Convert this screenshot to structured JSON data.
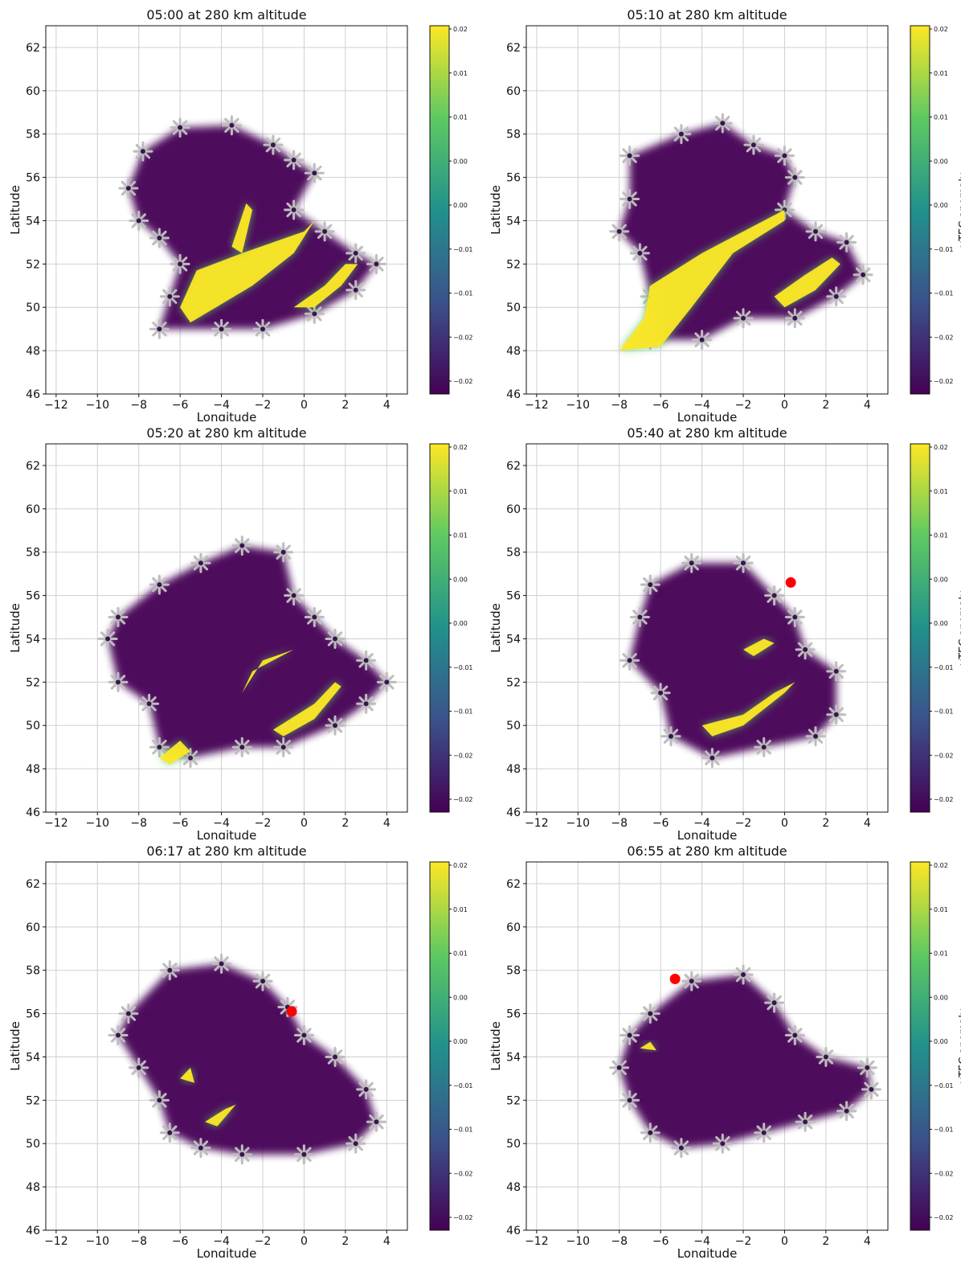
{
  "colorbar": {
    "ticks": [
      "0.02",
      "0.01",
      "0.01",
      "0.00",
      "0.00",
      "-0.01",
      "-0.01",
      "-0.02",
      "-0.02"
    ],
    "label": "vTEC anomaly",
    "colormap": [
      "#440154",
      "#3b528b",
      "#21918c",
      "#5ec962",
      "#fde725"
    ]
  },
  "chart_data": [
    {
      "type": "heatmap",
      "title": "05:00 at 280 km altitude",
      "xlabel": "Longitude",
      "ylabel": "Latitude",
      "xlim": [
        -12.5,
        5
      ],
      "ylim": [
        46,
        63
      ],
      "xticks": [
        -12,
        -10,
        -8,
        -6,
        -4,
        -2,
        0,
        2,
        4
      ],
      "yticks": [
        46,
        48,
        50,
        52,
        54,
        56,
        58,
        60,
        62
      ],
      "grid": true,
      "colorbar_label": "",
      "low_region": [
        [
          -7.8,
          57.2
        ],
        [
          -6.0,
          58.3
        ],
        [
          -3.5,
          58.4
        ],
        [
          -1.5,
          57.5
        ],
        [
          -0.5,
          56.8
        ],
        [
          0.5,
          56.2
        ],
        [
          -0.5,
          54.5
        ],
        [
          1.0,
          53.5
        ],
        [
          2.5,
          52.5
        ],
        [
          3.5,
          52.0
        ],
        [
          2.5,
          50.8
        ],
        [
          0.5,
          49.7
        ],
        [
          -2.0,
          49.0
        ],
        [
          -4.0,
          49.0
        ],
        [
          -7.0,
          49.0
        ],
        [
          -6.5,
          50.5
        ],
        [
          -6.0,
          52.0
        ],
        [
          -7.0,
          53.2
        ],
        [
          -8.0,
          54.0
        ],
        [
          -8.5,
          55.5
        ]
      ],
      "anomaly_bands": [
        [
          [
            -5.2,
            51.7
          ],
          [
            -3.0,
            52.5
          ],
          [
            -1.5,
            53.0
          ],
          [
            0.0,
            53.5
          ],
          [
            0.5,
            54.0
          ],
          [
            -0.5,
            52.5
          ],
          [
            -2.5,
            51.0
          ],
          [
            -5.5,
            49.3
          ],
          [
            -6.0,
            50.0
          ]
        ],
        [
          [
            -0.5,
            50.0
          ],
          [
            1.0,
            51.0
          ],
          [
            2.0,
            52.0
          ],
          [
            2.6,
            52.0
          ],
          [
            1.8,
            51.0
          ],
          [
            0.5,
            50.0
          ]
        ],
        [
          [
            -3.0,
            52.5
          ],
          [
            -2.5,
            54.5
          ],
          [
            -2.8,
            54.8
          ],
          [
            -3.5,
            52.8
          ]
        ]
      ],
      "red_marker": null
    },
    {
      "type": "heatmap",
      "title": "05:10 at 280 km altitude",
      "xlabel": "Longitude",
      "ylabel": "Latitude",
      "xlim": [
        -12.5,
        5
      ],
      "ylim": [
        46,
        63
      ],
      "xticks": [
        -12,
        -10,
        -8,
        -6,
        -4,
        -2,
        0,
        2,
        4
      ],
      "yticks": [
        46,
        48,
        50,
        52,
        54,
        56,
        58,
        60,
        62
      ],
      "grid": true,
      "colorbar_label": "vTEC anomaly",
      "low_region": [
        [
          -7.5,
          57.0
        ],
        [
          -5.0,
          58.0
        ],
        [
          -3.0,
          58.5
        ],
        [
          -1.5,
          57.5
        ],
        [
          0.0,
          57.0
        ],
        [
          0.5,
          56.0
        ],
        [
          0.0,
          54.5
        ],
        [
          1.5,
          53.5
        ],
        [
          3.0,
          53.0
        ],
        [
          3.8,
          51.5
        ],
        [
          2.5,
          50.5
        ],
        [
          0.5,
          49.5
        ],
        [
          -2.0,
          49.5
        ],
        [
          -4.0,
          48.5
        ],
        [
          -6.5,
          48.5
        ],
        [
          -6.5,
          50.5
        ],
        [
          -7.0,
          52.5
        ],
        [
          -8.0,
          53.5
        ],
        [
          -7.5,
          55.0
        ]
      ],
      "anomaly_bands": [
        [
          [
            -6.5,
            51.0
          ],
          [
            -4.0,
            52.5
          ],
          [
            -2.0,
            53.5
          ],
          [
            0.0,
            54.5
          ],
          [
            0.0,
            54.0
          ],
          [
            -2.5,
            52.5
          ],
          [
            -4.5,
            50.0
          ],
          [
            -6.0,
            48.2
          ],
          [
            -8.0,
            48.0
          ],
          [
            -6.8,
            49.5
          ]
        ],
        [
          [
            -0.5,
            50.5
          ],
          [
            1.0,
            51.5
          ],
          [
            2.3,
            52.3
          ],
          [
            2.7,
            52.0
          ],
          [
            1.5,
            50.8
          ],
          [
            0.0,
            50.0
          ]
        ]
      ],
      "red_marker": null
    },
    {
      "type": "heatmap",
      "title": "05:20 at 280 km altitude",
      "xlabel": "Longitude",
      "ylabel": "Latitude",
      "xlim": [
        -12.5,
        5
      ],
      "ylim": [
        46,
        63
      ],
      "xticks": [
        -12,
        -10,
        -8,
        -6,
        -4,
        -2,
        0,
        2,
        4
      ],
      "yticks": [
        46,
        48,
        50,
        52,
        54,
        56,
        58,
        60,
        62
      ],
      "grid": true,
      "colorbar_label": "",
      "low_region": [
        [
          -9.0,
          55.0
        ],
        [
          -7.0,
          56.5
        ],
        [
          -5.0,
          57.5
        ],
        [
          -3.0,
          58.3
        ],
        [
          -1.0,
          58.0
        ],
        [
          -0.5,
          56.0
        ],
        [
          0.5,
          55.0
        ],
        [
          1.5,
          54.0
        ],
        [
          3.0,
          53.0
        ],
        [
          4.0,
          52.0
        ],
        [
          3.0,
          51.0
        ],
        [
          1.5,
          50.0
        ],
        [
          -1.0,
          49.0
        ],
        [
          -3.0,
          49.0
        ],
        [
          -5.5,
          48.5
        ],
        [
          -7.0,
          49.0
        ],
        [
          -7.5,
          51.0
        ],
        [
          -9.0,
          52.0
        ],
        [
          -9.5,
          54.0
        ]
      ],
      "anomaly_bands": [
        [
          [
            -1.5,
            49.8
          ],
          [
            0.5,
            51.0
          ],
          [
            1.5,
            52.0
          ],
          [
            1.8,
            51.8
          ],
          [
            0.5,
            50.3
          ],
          [
            -1.0,
            49.5
          ]
        ],
        [
          [
            -3.0,
            51.5
          ],
          [
            -2.0,
            53.0
          ],
          [
            -0.5,
            53.5
          ],
          [
            -2.5,
            52.5
          ]
        ],
        [
          [
            -7.0,
            48.5
          ],
          [
            -6.0,
            49.3
          ],
          [
            -5.5,
            48.8
          ],
          [
            -6.5,
            48.2
          ]
        ]
      ],
      "red_marker": null
    },
    {
      "type": "heatmap",
      "title": "05:40 at 280 km altitude",
      "xlabel": "Longitude",
      "ylabel": "Latitude",
      "xlim": [
        -12.5,
        5
      ],
      "ylim": [
        46,
        63
      ],
      "xticks": [
        -12,
        -10,
        -8,
        -6,
        -4,
        -2,
        0,
        2,
        4
      ],
      "yticks": [
        46,
        48,
        50,
        52,
        54,
        56,
        58,
        60,
        62
      ],
      "grid": true,
      "colorbar_label": "vTEC anomaly",
      "low_region": [
        [
          -6.5,
          56.5
        ],
        [
          -4.5,
          57.5
        ],
        [
          -2.0,
          57.5
        ],
        [
          -0.5,
          56.0
        ],
        [
          0.5,
          55.0
        ],
        [
          1.0,
          53.5
        ],
        [
          2.5,
          52.5
        ],
        [
          2.5,
          50.5
        ],
        [
          1.5,
          49.5
        ],
        [
          -1.0,
          49.0
        ],
        [
          -3.5,
          48.5
        ],
        [
          -5.5,
          49.5
        ],
        [
          -6.0,
          51.5
        ],
        [
          -7.5,
          53.0
        ],
        [
          -7.0,
          55.0
        ]
      ],
      "anomaly_bands": [
        [
          [
            -4.0,
            50.0
          ],
          [
            -2.0,
            50.5
          ],
          [
            -0.5,
            51.5
          ],
          [
            0.5,
            52.0
          ],
          [
            0.0,
            51.5
          ],
          [
            -2.0,
            50.0
          ],
          [
            -3.5,
            49.5
          ]
        ],
        [
          [
            -2.0,
            53.5
          ],
          [
            -1.0,
            54.0
          ],
          [
            -0.5,
            53.8
          ],
          [
            -1.5,
            53.2
          ]
        ]
      ],
      "red_marker": {
        "x": 0.3,
        "y": 56.6
      }
    },
    {
      "type": "heatmap",
      "title": "06:17 at 280 km altitude",
      "xlabel": "Longitude",
      "ylabel": "Latitude",
      "xlim": [
        -12.5,
        5
      ],
      "ylim": [
        46,
        63
      ],
      "xticks": [
        -12,
        -10,
        -8,
        -6,
        -4,
        -2,
        0,
        2,
        4
      ],
      "yticks": [
        46,
        48,
        50,
        52,
        54,
        56,
        58,
        60,
        62
      ],
      "grid": true,
      "colorbar_label": "",
      "low_region": [
        [
          -8.5,
          56.0
        ],
        [
          -6.5,
          58.0
        ],
        [
          -4.0,
          58.3
        ],
        [
          -2.0,
          57.5
        ],
        [
          -0.8,
          56.3
        ],
        [
          0.0,
          55.0
        ],
        [
          1.5,
          54.0
        ],
        [
          3.0,
          52.5
        ],
        [
          3.5,
          51.0
        ],
        [
          2.5,
          50.0
        ],
        [
          0.0,
          49.5
        ],
        [
          -3.0,
          49.5
        ],
        [
          -5.0,
          49.8
        ],
        [
          -6.5,
          50.5
        ],
        [
          -7.0,
          52.0
        ],
        [
          -8.0,
          53.5
        ],
        [
          -9.0,
          55.0
        ]
      ],
      "anomaly_bands": [
        [
          [
            -4.8,
            51.0
          ],
          [
            -3.8,
            51.6
          ],
          [
            -3.3,
            51.8
          ],
          [
            -4.2,
            50.8
          ]
        ],
        [
          [
            -6.0,
            53.0
          ],
          [
            -5.5,
            53.5
          ],
          [
            -5.3,
            52.8
          ]
        ]
      ],
      "red_marker": {
        "x": -0.6,
        "y": 56.1
      }
    },
    {
      "type": "heatmap",
      "title": "06:55 at 280 km altitude",
      "xlabel": "Longitude",
      "ylabel": "Latitude",
      "xlim": [
        -12.5,
        5
      ],
      "ylim": [
        46,
        63
      ],
      "xticks": [
        -12,
        -10,
        -8,
        -6,
        -4,
        -2,
        0,
        2,
        4
      ],
      "yticks": [
        46,
        48,
        50,
        52,
        54,
        56,
        58,
        60,
        62
      ],
      "grid": true,
      "colorbar_label": "vTEC anomaly",
      "low_region": [
        [
          -6.5,
          56.0
        ],
        [
          -4.5,
          57.5
        ],
        [
          -2.0,
          57.8
        ],
        [
          -0.5,
          56.5
        ],
        [
          0.5,
          55.0
        ],
        [
          2.0,
          54.0
        ],
        [
          4.0,
          53.5
        ],
        [
          4.2,
          52.5
        ],
        [
          3.0,
          51.5
        ],
        [
          1.0,
          51.0
        ],
        [
          -1.0,
          50.5
        ],
        [
          -3.0,
          50.0
        ],
        [
          -5.0,
          49.8
        ],
        [
          -6.5,
          50.5
        ],
        [
          -7.5,
          52.0
        ],
        [
          -8.0,
          53.5
        ],
        [
          -7.5,
          55.0
        ]
      ],
      "anomaly_bands": [
        [
          [
            -7.0,
            54.4
          ],
          [
            -6.5,
            54.7
          ],
          [
            -6.2,
            54.3
          ]
        ]
      ],
      "red_marker": {
        "x": -5.3,
        "y": 57.6
      }
    }
  ]
}
